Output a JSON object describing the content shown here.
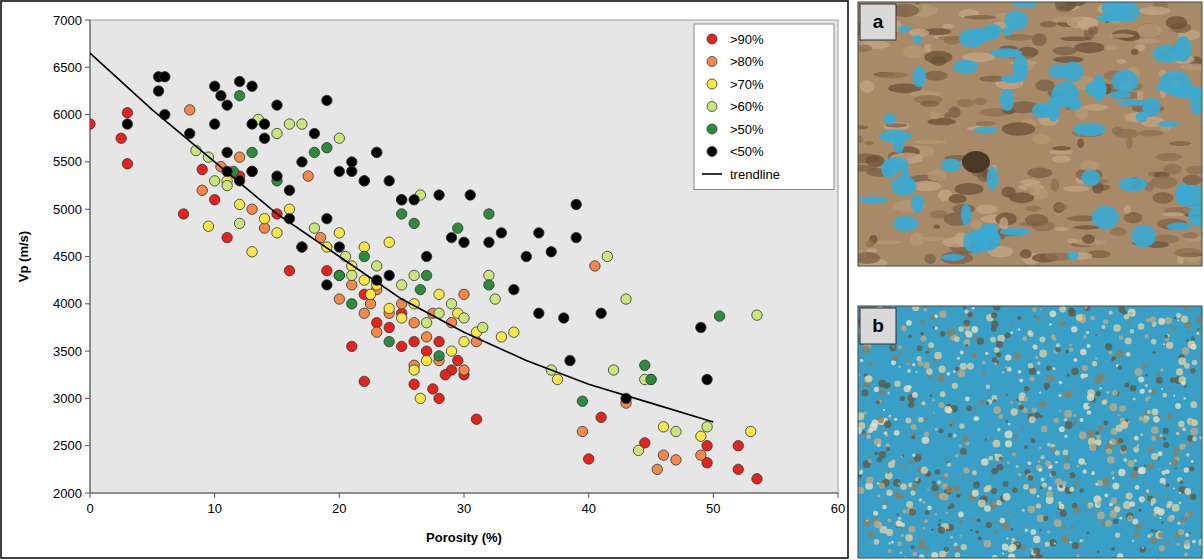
{
  "chart_data": {
    "type": "scatter",
    "x_label": "Porosity (%)",
    "y_label": "Vp (m/s)",
    "xlim": [
      0,
      60
    ],
    "ylim": [
      2000,
      7000
    ],
    "xticks": [
      0,
      10,
      20,
      30,
      40,
      50,
      60
    ],
    "yticks": [
      2000,
      2500,
      3000,
      3500,
      4000,
      4500,
      5000,
      5500,
      6000,
      6500,
      7000
    ],
    "grid": false,
    "legend": "top-right",
    "series": [
      {
        "name": ">90%",
        "color": "#e3241c",
        "marker": "circle",
        "x": [
          0,
          2.5,
          3,
          3,
          7.5,
          9,
          10,
          11,
          12,
          13,
          15,
          16,
          19,
          20,
          21,
          22,
          22,
          23,
          24,
          25,
          26,
          26,
          27,
          27.5,
          28,
          28,
          29,
          29.5,
          30,
          31,
          40,
          41,
          44.5,
          49.5,
          49.5,
          52,
          52,
          53.5,
          25,
          28.5
        ],
        "values": [
          5900,
          5750,
          6020,
          5480,
          4950,
          5420,
          5100,
          4700,
          5350,
          5400,
          4950,
          4350,
          4350,
          4300,
          3550,
          3180,
          4100,
          3800,
          3750,
          3900,
          3600,
          3150,
          3500,
          3100,
          3000,
          3600,
          3300,
          3400,
          3250,
          2780,
          2360,
          2800,
          2530,
          2500,
          2320,
          2500,
          2250,
          2150,
          3550,
          3250
        ]
      },
      {
        "name": ">80%",
        "color": "#f2884a",
        "marker": "circle",
        "x": [
          8,
          9,
          10.5,
          12,
          13,
          14,
          17.5,
          18.5,
          20,
          21,
          22,
          22.5,
          23,
          24,
          25,
          26,
          26,
          27,
          28,
          29,
          30,
          30,
          31,
          39.5,
          40.5,
          43,
          46,
          47,
          49,
          45.5,
          23,
          27.5
        ],
        "values": [
          6050,
          5200,
          5450,
          5550,
          5000,
          4800,
          5350,
          4700,
          4050,
          4200,
          3900,
          4000,
          4150,
          3900,
          4000,
          3800,
          3350,
          3650,
          3400,
          3800,
          4100,
          3300,
          3600,
          2650,
          4400,
          2950,
          2400,
          2350,
          2400,
          2250,
          3700,
          3900
        ]
      },
      {
        "name": ">70%",
        "color": "#f6e64c",
        "marker": "circle",
        "x": [
          9.5,
          11,
          12,
          13,
          14,
          15,
          16,
          17,
          19,
          20,
          21,
          22,
          22.5,
          23,
          24,
          24,
          25,
          26,
          26.5,
          27,
          28,
          29,
          29.5,
          30,
          31,
          33,
          34,
          37.5,
          45,
          46,
          49,
          53,
          22,
          26
        ],
        "values": [
          4820,
          5300,
          5050,
          4550,
          4900,
          4750,
          5000,
          4600,
          4600,
          4750,
          4400,
          4600,
          4100,
          4200,
          4650,
          3950,
          3850,
          4000,
          3000,
          3400,
          4100,
          3500,
          3900,
          3600,
          3700,
          3650,
          3700,
          3200,
          3200,
          2700,
          2600,
          2650,
          4250,
          3300
        ]
      },
      {
        "name": ">60%",
        "color": "#c9e57c",
        "marker": "circle",
        "x": [
          8.5,
          9.5,
          10,
          11,
          13.5,
          15,
          16,
          17,
          18,
          20,
          20.5,
          21,
          22,
          23,
          25,
          26,
          26.5,
          27,
          28,
          29,
          30,
          31.5,
          32,
          32.5,
          37,
          41.5,
          42,
          43,
          44,
          44.5,
          47,
          49.5,
          53.5,
          12
        ],
        "values": [
          5620,
          5550,
          5300,
          5250,
          5950,
          5800,
          5900,
          5900,
          4800,
          5750,
          4500,
          4300,
          5300,
          4400,
          4200,
          4300,
          5150,
          3800,
          3900,
          4000,
          3850,
          3750,
          4300,
          4050,
          3300,
          4500,
          3300,
          4050,
          2450,
          3200,
          2650,
          2700,
          3880,
          4850
        ]
      },
      {
        "name": ">50%",
        "color": "#2e8b3e",
        "marker": "circle",
        "x": [
          11.5,
          12,
          13,
          15,
          18,
          19,
          20,
          22,
          23,
          25,
          25,
          26,
          26.5,
          27,
          28,
          29.5,
          32,
          32,
          39.5,
          44.5,
          45,
          50.5,
          24,
          21
        ],
        "values": [
          5400,
          6200,
          5600,
          5300,
          5600,
          5650,
          4300,
          4500,
          5600,
          5100,
          4950,
          4850,
          4150,
          4300,
          3450,
          4800,
          4950,
          4200,
          2970,
          3350,
          3200,
          3870,
          3600,
          4000
        ]
      },
      {
        "name": "<50%",
        "color": "#000000",
        "marker": "circle",
        "x": [
          3,
          5.5,
          6,
          5.5,
          6,
          8,
          10,
          10.5,
          11,
          11,
          12,
          12,
          13,
          13,
          14,
          14,
          15,
          15,
          16,
          16,
          17,
          17,
          18,
          19,
          19,
          20,
          20,
          21,
          21,
          22,
          23,
          23,
          24,
          24,
          25,
          26,
          27,
          28,
          29,
          30.5,
          30,
          32,
          33,
          34,
          35,
          36,
          36,
          37,
          38,
          38.5,
          39,
          39,
          41,
          43,
          49,
          49.5,
          10,
          11,
          13,
          19
        ],
        "values": [
          5900,
          6400,
          6400,
          6250,
          6000,
          5800,
          6300,
          6200,
          5600,
          6100,
          5300,
          6350,
          6300,
          5900,
          5750,
          5900,
          6100,
          5350,
          5200,
          4900,
          4600,
          5500,
          5800,
          6150,
          4900,
          5400,
          4600,
          5500,
          5400,
          5300,
          5600,
          4250,
          4300,
          5300,
          5100,
          5100,
          4500,
          5150,
          4700,
          5150,
          4650,
          4650,
          4750,
          4150,
          4500,
          4750,
          3900,
          4550,
          3850,
          3400,
          4700,
          5050,
          3900,
          3000,
          3750,
          3200,
          5900,
          5400,
          5400,
          4200
        ]
      },
      {
        "name": "trendline",
        "type": "line",
        "color": "#000000",
        "line_style": "solid",
        "x": [
          0,
          5,
          10,
          15,
          20,
          25,
          30,
          35,
          40,
          45,
          50
        ],
        "values": [
          6650,
          6050,
          5500,
          4950,
          4500,
          4050,
          3700,
          3400,
          3150,
          2950,
          2750
        ]
      }
    ]
  },
  "panels": [
    {
      "label": "a"
    },
    {
      "label": "b"
    }
  ]
}
